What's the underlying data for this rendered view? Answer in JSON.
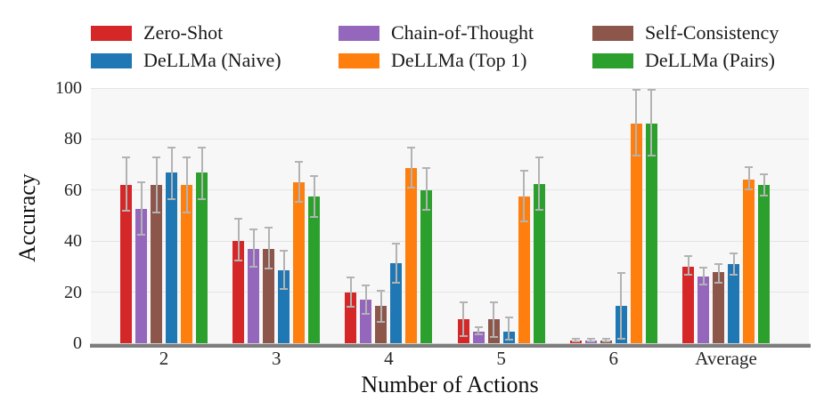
{
  "chart_data": {
    "type": "bar",
    "title": "",
    "xlabel": "Number of Actions",
    "ylabel": "Accuracy",
    "categories": [
      "2",
      "3",
      "4",
      "5",
      "6",
      "Average"
    ],
    "y_ticks": [
      0,
      20,
      40,
      60,
      80,
      100
    ],
    "ylim": [
      0,
      100
    ],
    "grid": true,
    "legend_position": "top",
    "error_bar_color": "#b3b3b3",
    "plot_background": "#f7f7f8",
    "series": [
      {
        "name": "Zero-Shot",
        "color": "#d62728",
        "values": [
          62,
          40,
          20,
          9.5,
          1.2,
          30
        ],
        "err_lo": [
          51.5,
          32,
          14,
          2.5,
          0.4,
          26.5
        ],
        "err_hi": [
          73,
          49,
          26,
          16.5,
          2,
          34.5
        ]
      },
      {
        "name": "Chain-of-Thought",
        "color": "#9467bd",
        "values": [
          52.5,
          37,
          17,
          4.7,
          1.2,
          26
        ],
        "err_lo": [
          42,
          29.5,
          11,
          3,
          0.4,
          22.5
        ],
        "err_hi": [
          63.5,
          45,
          23,
          6.5,
          2,
          30
        ]
      },
      {
        "name": "Self-Consistency",
        "color": "#8c564b",
        "values": [
          62,
          37,
          14.5,
          9.5,
          1.2,
          28
        ],
        "err_lo": [
          51,
          29,
          8,
          2,
          0.4,
          23.5
        ],
        "err_hi": [
          73,
          45.5,
          21,
          16.5,
          2,
          31.5
        ]
      },
      {
        "name": "DeLLMa (Naive)",
        "color": "#1f77b4",
        "values": [
          67,
          28.5,
          31.5,
          4.7,
          14.5,
          31
        ],
        "err_lo": [
          56,
          21,
          23.5,
          1,
          1.5,
          26.5
        ],
        "err_hi": [
          77,
          36.5,
          39.5,
          10.5,
          28,
          35.5
        ]
      },
      {
        "name": "DeLLMa (Top 1)",
        "color": "#ff7f0e",
        "values": [
          62,
          63,
          68.5,
          57.5,
          86,
          64
        ],
        "err_lo": [
          51,
          55,
          60.5,
          47.5,
          73,
          60
        ],
        "err_hi": [
          73,
          71.5,
          77,
          68,
          99.5,
          69.5
        ]
      },
      {
        "name": "DeLLMa (Pairs)",
        "color": "#2ca02c",
        "values": [
          67,
          57.5,
          60,
          62.5,
          86,
          62
        ],
        "err_lo": [
          56,
          49,
          52,
          52,
          73,
          57.5
        ],
        "err_hi": [
          77,
          66,
          69,
          73,
          99.5,
          66.5
        ]
      }
    ]
  }
}
